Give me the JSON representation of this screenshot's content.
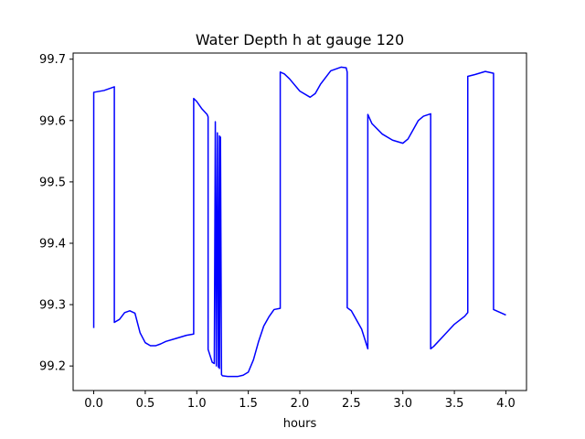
{
  "chart_data": {
    "type": "line",
    "title": "Water Depth h at gauge 120",
    "xlabel": "hours",
    "ylabel": "",
    "xlim": [
      -0.2,
      4.2
    ],
    "ylim": [
      99.16,
      99.71
    ],
    "xticks": [
      0.0,
      0.5,
      1.0,
      1.5,
      2.0,
      2.5,
      3.0,
      3.5,
      4.0
    ],
    "xtick_labels": [
      "0.0",
      "0.5",
      "1.0",
      "1.5",
      "2.0",
      "2.5",
      "3.0",
      "3.5",
      "4.0"
    ],
    "yticks": [
      99.2,
      99.3,
      99.4,
      99.5,
      99.6,
      99.7
    ],
    "ytick_labels": [
      "99.2",
      "99.3",
      "99.4",
      "99.5",
      "99.6",
      "99.7"
    ],
    "grid": false,
    "series": [
      {
        "color": "#0000ff",
        "x": [
          0.0,
          0.0,
          0.1,
          0.2,
          0.2,
          0.25,
          0.3,
          0.35,
          0.4,
          0.45,
          0.5,
          0.55,
          0.6,
          0.65,
          0.7,
          0.8,
          0.9,
          0.97,
          0.97,
          1.0,
          1.05,
          1.1,
          1.11,
          1.11,
          1.15,
          1.17,
          1.18,
          1.19,
          1.2,
          1.21,
          1.22,
          1.22,
          1.23,
          1.24,
          1.24,
          1.25,
          1.3,
          1.4,
          1.45,
          1.5,
          1.55,
          1.6,
          1.65,
          1.7,
          1.75,
          1.81,
          1.81,
          1.85,
          1.9,
          2.0,
          2.1,
          2.15,
          2.2,
          2.3,
          2.4,
          2.45,
          2.46,
          2.46,
          2.5,
          2.6,
          2.66,
          2.66,
          2.7,
          2.8,
          2.9,
          3.0,
          3.05,
          3.1,
          3.15,
          3.2,
          3.27,
          3.27,
          3.3,
          3.4,
          3.5,
          3.6,
          3.63,
          3.63,
          3.7,
          3.8,
          3.88,
          3.88,
          4.0
        ],
        "y": [
          99.262,
          99.646,
          99.649,
          99.655,
          99.271,
          99.276,
          99.287,
          99.29,
          99.286,
          99.254,
          99.238,
          99.233,
          99.233,
          99.236,
          99.24,
          99.245,
          99.25,
          99.252,
          99.636,
          99.631,
          99.619,
          99.61,
          99.606,
          99.227,
          99.206,
          99.204,
          99.598,
          99.2,
          99.58,
          99.198,
          99.575,
          99.196,
          99.573,
          99.188,
          99.186,
          99.184,
          99.183,
          99.183,
          99.185,
          99.19,
          99.21,
          99.24,
          99.265,
          99.28,
          99.292,
          99.294,
          99.679,
          99.676,
          99.668,
          99.648,
          99.638,
          99.644,
          99.659,
          99.681,
          99.687,
          99.686,
          99.679,
          99.295,
          99.29,
          99.26,
          99.228,
          99.61,
          99.595,
          99.578,
          99.568,
          99.563,
          99.57,
          99.585,
          99.6,
          99.607,
          99.611,
          99.228,
          99.232,
          99.25,
          99.268,
          99.281,
          99.287,
          99.672,
          99.675,
          99.68,
          99.677,
          99.292,
          99.283
        ]
      }
    ]
  }
}
